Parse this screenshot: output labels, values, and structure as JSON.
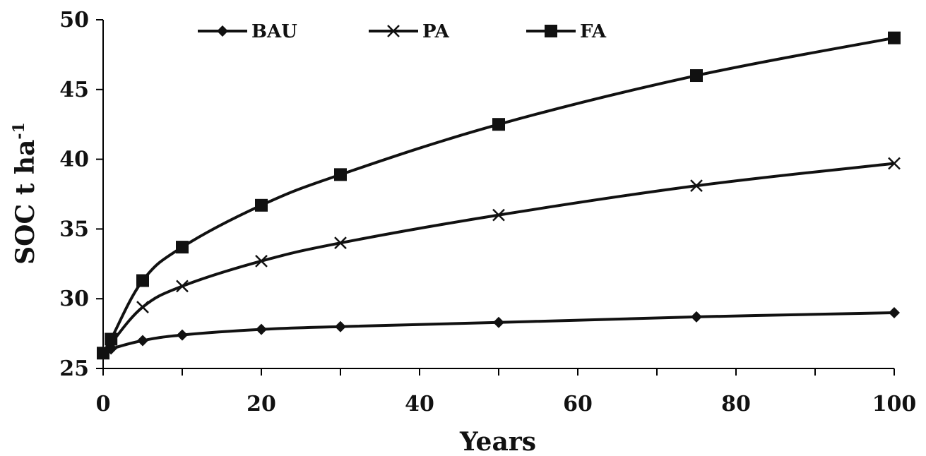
{
  "chart_data": {
    "type": "line",
    "xlabel": "Years",
    "ylabel_main": "SOC t ha",
    "ylabel_sup": "-1",
    "xlim": [
      0,
      100
    ],
    "ylim": [
      25,
      50
    ],
    "xticks": [
      0,
      20,
      40,
      60,
      80,
      100
    ],
    "yticks": [
      25,
      30,
      35,
      40,
      45,
      50
    ],
    "x": [
      0,
      1,
      5,
      10,
      20,
      30,
      50,
      75,
      100
    ],
    "legend_position": "top",
    "series": [
      {
        "name": "BAU",
        "marker": "diamond",
        "values": [
          26.1,
          26.4,
          27.0,
          27.4,
          27.8,
          28.0,
          28.3,
          28.7,
          29.0
        ]
      },
      {
        "name": "PA",
        "marker": "x",
        "values": [
          26.1,
          26.8,
          29.4,
          30.9,
          32.7,
          34.0,
          36.0,
          38.1,
          39.7
        ]
      },
      {
        "name": "FA",
        "marker": "square",
        "values": [
          26.1,
          27.1,
          31.3,
          33.7,
          36.7,
          38.9,
          42.5,
          46.0,
          48.7
        ]
      }
    ],
    "colors": {
      "line": "#111111",
      "background": "#ffffff"
    }
  }
}
